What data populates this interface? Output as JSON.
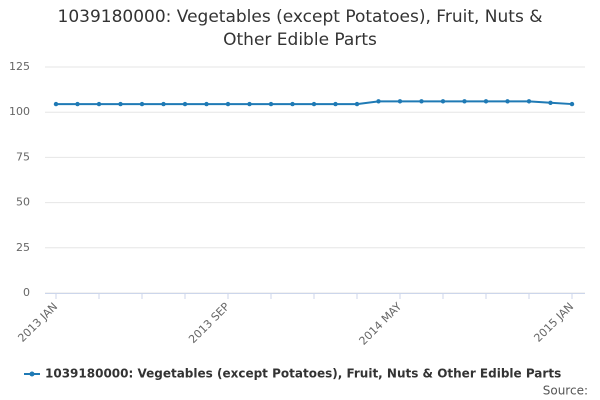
{
  "chart_data": {
    "type": "line",
    "title": "1039180000: Vegetables (except Potatoes), Fruit, Nuts & Other Edible Parts",
    "categories": [
      "2013 JAN",
      null,
      null,
      null,
      null,
      null,
      null,
      null,
      "2013 SEP",
      null,
      null,
      null,
      null,
      null,
      null,
      null,
      "2014 MAY",
      null,
      null,
      null,
      null,
      null,
      null,
      null,
      "2015 JAN"
    ],
    "series": [
      {
        "name": "1039180000: Vegetables (except Potatoes), Fruit, Nuts & Other Edible Parts",
        "color": "#1f7ab5",
        "values": [
          104.5,
          104.5,
          104.5,
          104.5,
          104.5,
          104.5,
          104.5,
          104.5,
          104.5,
          104.5,
          104.5,
          104.5,
          104.5,
          104.5,
          104.5,
          106,
          106,
          106,
          106,
          106,
          106,
          106,
          106,
          105.2,
          104.5
        ]
      }
    ],
    "ylim": [
      0,
      125
    ],
    "yticks": [
      0,
      25,
      50,
      75,
      100,
      125
    ],
    "grid": true,
    "source": "Source:"
  }
}
